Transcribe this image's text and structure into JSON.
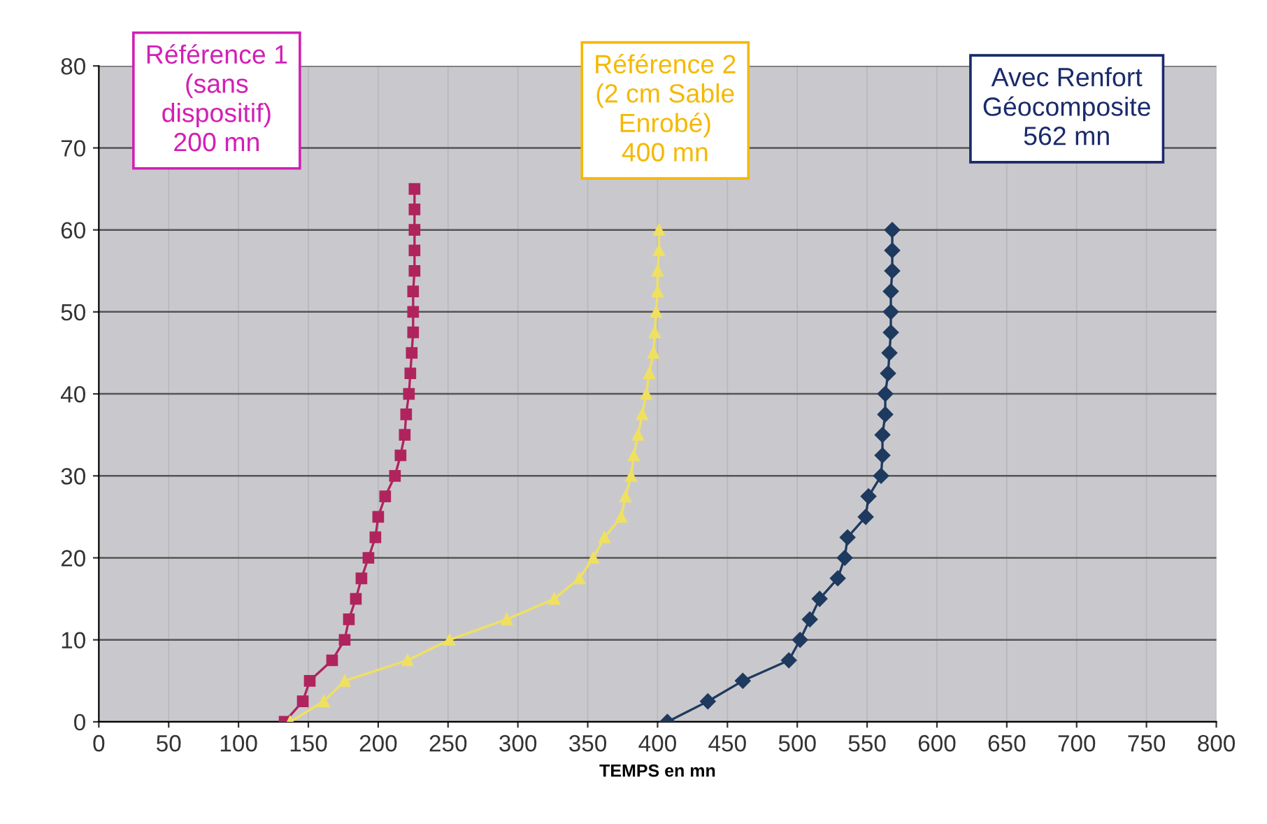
{
  "chart_data": {
    "type": "line",
    "xlabel": "TEMPS en mn",
    "xlim": [
      0,
      800
    ],
    "xticks": [
      0,
      50,
      100,
      150,
      200,
      250,
      300,
      350,
      400,
      450,
      500,
      550,
      600,
      650,
      700,
      750,
      800
    ],
    "ylim": [
      0,
      80
    ],
    "yticks": [
      0,
      10,
      20,
      30,
      40,
      50,
      60,
      70,
      80
    ],
    "grid": true,
    "annotations": [
      "Référence 1\n(sans\ndispositif)\n200 mn",
      "Référence 2\n(2 cm Sable\nEnrobé)\n400 mn",
      "Avec Renfort\nGéocomposite\n562 mn"
    ],
    "series": [
      {
        "color": "#b0245e",
        "marker": "square",
        "x": [
          133,
          146,
          151,
          167,
          176,
          179,
          184,
          188,
          193,
          198,
          200,
          205,
          212,
          216,
          219,
          220,
          222,
          223,
          224,
          225,
          225,
          225,
          226,
          226,
          226,
          226,
          226
        ],
        "values": [
          0,
          2.5,
          5,
          7.5,
          10,
          12.5,
          15,
          17.5,
          20,
          22.5,
          25,
          27.5,
          30,
          32.5,
          35,
          37.5,
          40,
          42.5,
          45,
          47.5,
          50,
          52.5,
          55,
          57.5,
          60,
          62.5,
          65
        ]
      },
      {
        "color": "#f0e060",
        "marker": "triangle",
        "x": [
          137,
          161,
          176,
          221,
          251,
          292,
          326,
          344,
          354,
          362,
          374,
          377,
          381,
          383,
          386,
          389,
          392,
          394,
          397,
          398,
          399,
          400,
          400,
          401,
          401
        ],
        "values": [
          0,
          2.5,
          5,
          7.5,
          10,
          12.5,
          15,
          17.5,
          20,
          22.5,
          25,
          27.5,
          30,
          32.5,
          35,
          37.5,
          40,
          42.5,
          45,
          47.5,
          50,
          52.5,
          55,
          57.5,
          60
        ]
      },
      {
        "color": "#1f3a5f",
        "marker": "diamond",
        "x": [
          407,
          436,
          461,
          494,
          502,
          509,
          516,
          529,
          534,
          536,
          549,
          551,
          560,
          561,
          561,
          563,
          563,
          565,
          566,
          567,
          567,
          567,
          568,
          568,
          568
        ],
        "values": [
          0,
          2.5,
          5,
          7.5,
          10,
          12.5,
          15,
          17.5,
          20,
          22.5,
          25,
          27.5,
          30,
          32.5,
          35,
          37.5,
          40,
          42.5,
          45,
          47.5,
          50,
          52.5,
          55,
          57.5,
          60
        ]
      }
    ]
  }
}
